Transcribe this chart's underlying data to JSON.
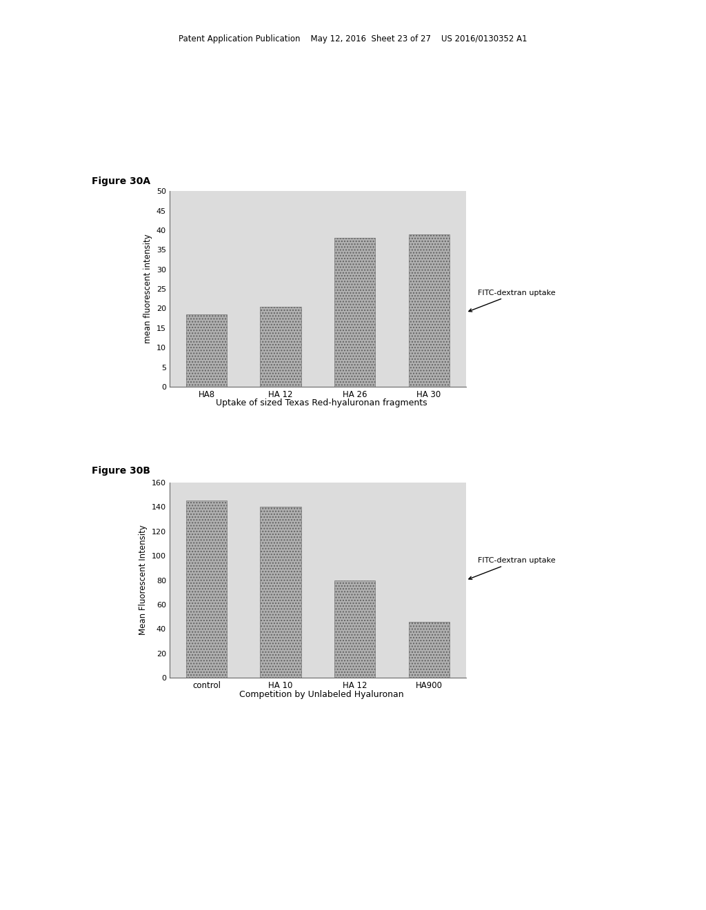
{
  "page_header": "Patent Application Publication    May 12, 2016  Sheet 23 of 27    US 2016/0130352 A1",
  "fig_a": {
    "title": "Figure 30A",
    "categories": [
      "HA8",
      "HA 12",
      "HA 26",
      "HA 30"
    ],
    "values": [
      18.5,
      20.5,
      38.0,
      39.0
    ],
    "ylabel": "mean fluorescent intensity",
    "xlabel": "Uptake of sized Texas Red-hyaluronan fragments",
    "ylim": [
      0,
      50
    ],
    "yticks": [
      0,
      5,
      10,
      15,
      20,
      25,
      30,
      35,
      40,
      45,
      50
    ],
    "annotation_text": "FITC-dextran uptake",
    "bar_color": "#b0b0b0",
    "bar_hatch": "....",
    "bg_color": "#dcdcdc"
  },
  "fig_b": {
    "title": "Figure 30B",
    "categories": [
      "control",
      "HA 10",
      "HA 12",
      "HA900"
    ],
    "values": [
      145.0,
      140.0,
      80.0,
      46.0
    ],
    "ylabel": "Mean Fluorescent Intensity",
    "xlabel": "Competition by Unlabeled Hyaluronan",
    "ylim": [
      0,
      160
    ],
    "yticks": [
      0,
      20,
      40,
      60,
      80,
      100,
      120,
      140,
      160
    ],
    "annotation_text": "FITC-dextran uptake",
    "bar_color": "#b0b0b0",
    "bar_hatch": "....",
    "bg_color": "#dcdcdc"
  },
  "background_color": "#ffffff",
  "text_color": "#000000"
}
